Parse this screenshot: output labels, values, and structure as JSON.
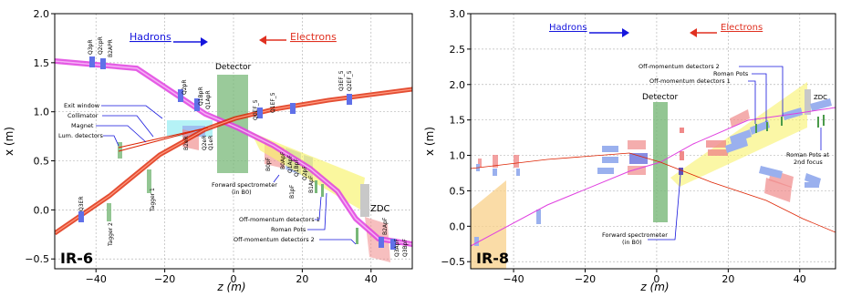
{
  "panels": [
    {
      "id": "ir6",
      "label": "IR-6",
      "x_label": "z (m)",
      "y_label": "x (m)",
      "x_range": [
        -52,
        52
      ],
      "y_range": [
        -0.6,
        2.0
      ],
      "x_ticks": [
        -40,
        -20,
        0,
        20,
        40
      ],
      "y_ticks": [
        -0.5,
        0.0,
        0.5,
        1.0,
        1.5,
        2.0
      ],
      "x_tick_labels": [
        "−40",
        "−20",
        "0",
        "20",
        "40"
      ],
      "y_tick_labels": [
        "−0.5",
        "0.0",
        "0.5",
        "1.0",
        "1.5",
        "2.0"
      ],
      "hadrons_label": "Hadrons",
      "electrons_label": "Electrons",
      "detector_label": "Detector",
      "zdc_label": "ZDC",
      "magnets": {
        "q3pr": "Q3pR",
        "q2cpr": "Q2cpR",
        "b2apr": "B2APR",
        "q2pr": "Q2pR",
        "q1bpr": "Q1BpR",
        "q1apr": "Q1ApR",
        "b2er": "B2eR",
        "q1er": "Q1eR",
        "q2er": "Q2eR",
        "q3er": "Q3ER",
        "q0ef": "Q0EF_5",
        "q1ef": "Q1EF_5",
        "q2ef": "Q2EF_5",
        "q3ef": "Q3EF_5",
        "b0pf": "B0pF",
        "b0apf": "B0ApF",
        "q1apf": "Q1ApF",
        "q1bpf": "Q1BpF",
        "q2pf": "Q2pF",
        "b1pf": "B1pF",
        "b1apf": "B1ApF",
        "b2apf": "B2ApF",
        "q3apf": "Q3ApF",
        "q3bpf": "Q3BpF"
      },
      "tagger1": "Tagger 1",
      "tagger2": "Tagger 2",
      "callouts": {
        "exit_window": "Exit window",
        "collimator": "Collimator",
        "magnet": "Magnet",
        "lum_detectors": "Lum. detectors",
        "forward_spec_line1": "Forward spectrometer",
        "forward_spec_line2": "(in B0)",
        "offmom1": "Off-momentum detectors 1",
        "roman_pots": "Roman Pots",
        "offmom2": "Off-momentum detectors 2"
      }
    },
    {
      "id": "ir8",
      "label": "IR-8",
      "x_label": "z (m)",
      "y_label": "x (m)",
      "x_range": [
        -52,
        50
      ],
      "y_range": [
        -0.6,
        3.0
      ],
      "x_ticks": [
        -40,
        -20,
        0,
        20,
        40
      ],
      "y_ticks": [
        -0.5,
        0.0,
        0.5,
        1.0,
        1.5,
        2.0,
        2.5,
        3.0
      ],
      "x_tick_labels": [
        "−40",
        "−20",
        "0",
        "20",
        "40"
      ],
      "y_tick_labels": [
        "−0.5",
        "0.0",
        "0.5",
        "1.0",
        "1.5",
        "2.0",
        "2.5",
        "3.0"
      ],
      "hadrons_label": "Hadrons",
      "electrons_label": "Electrons",
      "detector_label": "Detector",
      "zdc_label": "ZDC",
      "callouts": {
        "offmom2": "Off-momentum detectors 2",
        "roman_pots": "Roman Pots",
        "offmom1": "Off-momentum detectors 1",
        "forward_spec_line1": "Forward spectrometer",
        "forward_spec_line2": "(in B0)",
        "rp2_line1": "Roman Pots at",
        "rp2_line2": "2nd focus"
      }
    }
  ],
  "colors": {
    "hadron_beam": "#e040e0",
    "electron_beam": "#dd2200",
    "hadron_arrow": "#1515dd",
    "electron_arrow": "#e03020",
    "detector": "#78b878",
    "callout_line": "#1515dd"
  }
}
